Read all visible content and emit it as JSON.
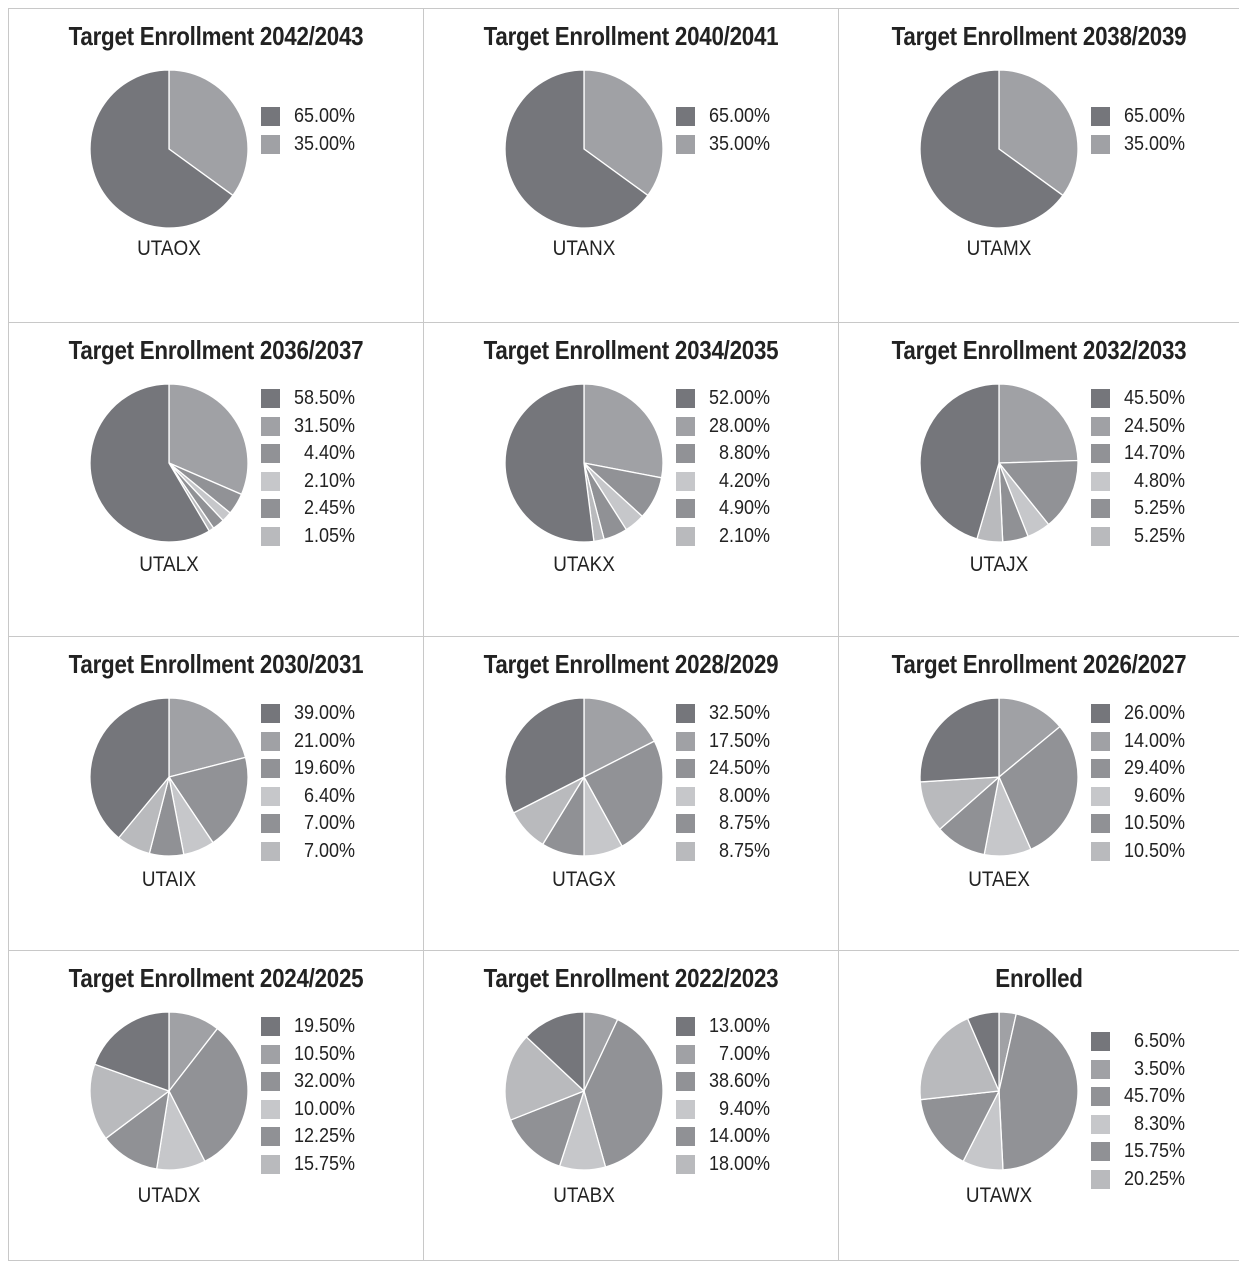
{
  "palette": [
    "#75767b",
    "#a0a1a5",
    "#919296",
    "#c6c7ca",
    "#909195",
    "#b9babd"
  ],
  "chart_data": [
    {
      "type": "pie",
      "title": "Target Enrollment 2042/2043",
      "label": "UTAOX",
      "legend": [
        "65.00%",
        "35.00%"
      ],
      "values": [
        65.0,
        35.0
      ]
    },
    {
      "type": "pie",
      "title": "Target Enrollment 2040/2041",
      "label": "UTANX",
      "legend": [
        "65.00%",
        "35.00%"
      ],
      "values": [
        65.0,
        35.0
      ]
    },
    {
      "type": "pie",
      "title": "Target Enrollment 2038/2039",
      "label": "UTAMX",
      "legend": [
        "65.00%",
        "35.00%"
      ],
      "values": [
        65.0,
        35.0
      ]
    },
    {
      "type": "pie",
      "title": "Target Enrollment 2036/2037",
      "label": "UTALX",
      "legend": [
        "58.50%",
        "31.50%",
        "4.40%",
        "2.10%",
        "2.45%",
        "1.05%"
      ],
      "values": [
        58.5,
        31.5,
        4.4,
        2.1,
        2.45,
        1.05
      ]
    },
    {
      "type": "pie",
      "title": "Target Enrollment 2034/2035",
      "label": "UTAKX",
      "legend": [
        "52.00%",
        "28.00%",
        "8.80%",
        "4.20%",
        "4.90%",
        "2.10%"
      ],
      "values": [
        52.0,
        28.0,
        8.8,
        4.2,
        4.9,
        2.1
      ]
    },
    {
      "type": "pie",
      "title": "Target Enrollment 2032/2033",
      "label": "UTAJX",
      "legend": [
        "45.50%",
        "24.50%",
        "14.70%",
        "4.80%",
        "5.25%",
        "5.25%"
      ],
      "values": [
        45.5,
        24.5,
        14.7,
        4.8,
        5.25,
        5.25
      ]
    },
    {
      "type": "pie",
      "title": "Target Enrollment 2030/2031",
      "label": "UTAIX",
      "legend": [
        "39.00%",
        "21.00%",
        "19.60%",
        "6.40%",
        "7.00%",
        "7.00%"
      ],
      "values": [
        39.0,
        21.0,
        19.6,
        6.4,
        7.0,
        7.0
      ]
    },
    {
      "type": "pie",
      "title": "Target Enrollment 2028/2029",
      "label": "UTAGX",
      "legend": [
        "32.50%",
        "17.50%",
        "24.50%",
        "8.00%",
        "8.75%",
        "8.75%"
      ],
      "values": [
        32.5,
        17.5,
        24.5,
        8.0,
        8.75,
        8.75
      ]
    },
    {
      "type": "pie",
      "title": "Target Enrollment 2026/2027",
      "label": "UTAEX",
      "legend": [
        "26.00%",
        "14.00%",
        "29.40%",
        "9.60%",
        "10.50%",
        "10.50%"
      ],
      "values": [
        26.0,
        14.0,
        29.4,
        9.6,
        10.5,
        10.5
      ]
    },
    {
      "type": "pie",
      "title": "Target Enrollment 2024/2025",
      "label": "UTADX",
      "legend": [
        "19.50%",
        "10.50%",
        "32.00%",
        "10.00%",
        "12.25%",
        "15.75%"
      ],
      "values": [
        19.5,
        10.5,
        32.0,
        10.0,
        12.25,
        15.75
      ]
    },
    {
      "type": "pie",
      "title": "Target Enrollment 2022/2023",
      "label": "UTABX",
      "legend": [
        "13.00%",
        "7.00%",
        "38.60%",
        "9.40%",
        "14.00%",
        "18.00%"
      ],
      "values": [
        13.0,
        7.0,
        38.6,
        9.4,
        14.0,
        18.0
      ]
    },
    {
      "type": "pie",
      "title": "Enrolled",
      "label": "UTAWX",
      "legend": [
        "6.50%",
        "3.50%",
        "45.70%",
        "8.30%",
        "15.75%",
        "20.25%"
      ],
      "values": [
        6.5,
        3.5,
        45.7,
        8.3,
        15.75,
        20.25
      ]
    }
  ]
}
